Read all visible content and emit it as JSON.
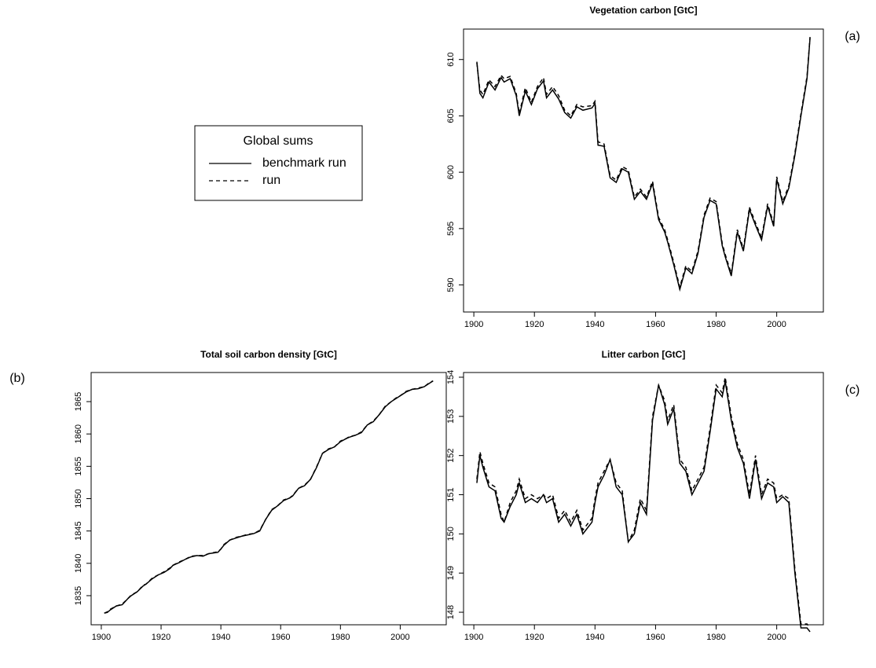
{
  "chart_data": [
    {
      "type": "line",
      "title": "Vegetation carbon [GtC]",
      "panel_label": "(a)",
      "legend_title": "Global sums",
      "x": [
        1901,
        1902,
        1903,
        1905,
        1907,
        1909,
        1910,
        1912,
        1914,
        1915,
        1917,
        1919,
        1921,
        1923,
        1924,
        1926,
        1928,
        1930,
        1932,
        1934,
        1936,
        1939,
        1940,
        1941,
        1943,
        1945,
        1947,
        1949,
        1951,
        1953,
        1955,
        1957,
        1959,
        1961,
        1963,
        1964,
        1966,
        1968,
        1970,
        1972,
        1974,
        1976,
        1978,
        1980,
        1982,
        1983,
        1985,
        1987,
        1989,
        1991,
        1993,
        1995,
        1997,
        1999,
        2000,
        2002,
        2004,
        2006,
        2008,
        2010,
        2011
      ],
      "series": [
        {
          "name": "benchmark run",
          "color": "#000000",
          "linestyle": "solid",
          "values": [
            609.8,
            607.0,
            606.6,
            608.0,
            607.3,
            608.4,
            608.0,
            608.3,
            606.8,
            605.0,
            607.2,
            606.0,
            607.4,
            608.1,
            606.6,
            607.3,
            606.5,
            605.3,
            604.8,
            605.8,
            605.5,
            605.7,
            606.1,
            602.4,
            602.3,
            599.5,
            599.1,
            600.3,
            600.0,
            597.6,
            598.3,
            597.6,
            599.0,
            595.8,
            594.7,
            593.8,
            591.8,
            589.6,
            591.5,
            591.0,
            592.8,
            596.0,
            597.5,
            597.2,
            593.5,
            592.5,
            590.8,
            594.7,
            593.0,
            596.7,
            595.3,
            594.0,
            597.0,
            595.2,
            599.4,
            597.2,
            598.6,
            601.5,
            605.0,
            608.3,
            611.9
          ]
        },
        {
          "name": "run",
          "color": "#000000",
          "linestyle": "dashed",
          "values": [
            609.7,
            607.3,
            606.9,
            608.2,
            607.6,
            608.6,
            608.3,
            608.5,
            607.0,
            605.2,
            607.5,
            606.2,
            607.6,
            608.4,
            606.9,
            607.6,
            606.8,
            605.5,
            605.0,
            606.0,
            605.8,
            605.9,
            606.3,
            602.7,
            602.5,
            599.7,
            599.3,
            600.5,
            600.2,
            597.8,
            598.5,
            597.8,
            599.2,
            596.0,
            594.9,
            594.0,
            592.0,
            589.8,
            591.7,
            591.2,
            593.0,
            596.2,
            597.7,
            597.4,
            593.7,
            592.7,
            591.0,
            594.9,
            593.2,
            596.9,
            595.5,
            594.2,
            597.2,
            595.4,
            599.6,
            597.4,
            598.8,
            601.7,
            605.2,
            608.5,
            612.0
          ]
        }
      ],
      "xlim": [
        1896.6,
        2015.4
      ],
      "xticks": [
        1900,
        1920,
        1940,
        1960,
        1980,
        2000
      ],
      "ylim": [
        587.6,
        612.7
      ],
      "yticks": [
        590,
        595,
        600,
        605,
        610
      ]
    },
    {
      "type": "line",
      "title": "Total soil carbon density [GtC]",
      "panel_label": "(b)",
      "x": [
        1901,
        1902,
        1903,
        1905,
        1907,
        1909,
        1910,
        1912,
        1914,
        1915,
        1917,
        1919,
        1921,
        1923,
        1924,
        1926,
        1928,
        1930,
        1932,
        1934,
        1936,
        1939,
        1940,
        1941,
        1943,
        1945,
        1947,
        1949,
        1951,
        1953,
        1955,
        1957,
        1959,
        1961,
        1963,
        1964,
        1966,
        1968,
        1970,
        1972,
        1974,
        1976,
        1978,
        1980,
        1982,
        1983,
        1985,
        1987,
        1989,
        1991,
        1993,
        1995,
        1997,
        1999,
        2000,
        2002,
        2004,
        2006,
        2008,
        2010,
        2011
      ],
      "series": [
        {
          "color": "#000000",
          "linestyle": "solid",
          "values": [
            1832.3,
            1832.4,
            1832.8,
            1833.4,
            1833.6,
            1834.6,
            1835.0,
            1835.6,
            1836.5,
            1836.8,
            1837.6,
            1838.2,
            1838.6,
            1839.2,
            1839.7,
            1840.1,
            1840.6,
            1841.0,
            1841.2,
            1841.1,
            1841.5,
            1841.7,
            1842.2,
            1842.8,
            1843.6,
            1843.9,
            1844.2,
            1844.4,
            1844.6,
            1845.0,
            1846.8,
            1848.2,
            1848.9,
            1849.7,
            1850.1,
            1850.4,
            1851.6,
            1852.0,
            1853.0,
            1854.8,
            1857.0,
            1857.6,
            1858.0,
            1858.8,
            1859.3,
            1859.5,
            1859.8,
            1860.2,
            1861.4,
            1861.9,
            1863.0,
            1864.2,
            1865.0,
            1865.6,
            1865.9,
            1866.5,
            1866.9,
            1867.0,
            1867.3,
            1867.9,
            1868.2
          ]
        },
        {
          "color": "#000000",
          "linestyle": "dashed",
          "values": [
            1832.3,
            1832.5,
            1832.9,
            1833.4,
            1833.7,
            1834.6,
            1835.1,
            1835.6,
            1836.6,
            1836.8,
            1837.7,
            1838.2,
            1838.7,
            1839.3,
            1839.7,
            1840.2,
            1840.6,
            1841.1,
            1841.2,
            1841.2,
            1841.5,
            1841.8,
            1842.2,
            1842.9,
            1843.6,
            1844.0,
            1844.2,
            1844.5,
            1844.6,
            1845.1,
            1846.8,
            1848.3,
            1848.9,
            1849.8,
            1850.1,
            1850.5,
            1851.6,
            1852.1,
            1853.0,
            1854.9,
            1857.0,
            1857.7,
            1858.0,
            1858.9,
            1859.3,
            1859.6,
            1859.8,
            1860.3,
            1861.4,
            1862.0,
            1863.0,
            1864.3,
            1865.0,
            1865.7,
            1865.9,
            1866.6,
            1866.9,
            1867.1,
            1867.3,
            1868.0,
            1868.2
          ]
        }
      ],
      "xlim": [
        1896.6,
        2015.4
      ],
      "xticks": [
        1900,
        1920,
        1940,
        1960,
        1980,
        2000
      ],
      "ylim": [
        1830.5,
        1869.5
      ],
      "yticks": [
        1835,
        1840,
        1845,
        1850,
        1855,
        1860,
        1865
      ]
    },
    {
      "type": "line",
      "title": "Litter carbon [GtC]",
      "panel_label": "(c)",
      "x": [
        1901,
        1902,
        1903,
        1905,
        1907,
        1909,
        1910,
        1912,
        1914,
        1915,
        1917,
        1919,
        1921,
        1923,
        1924,
        1926,
        1928,
        1930,
        1932,
        1934,
        1936,
        1939,
        1940,
        1941,
        1943,
        1945,
        1947,
        1949,
        1951,
        1953,
        1955,
        1957,
        1959,
        1961,
        1963,
        1964,
        1966,
        1968,
        1970,
        1972,
        1974,
        1976,
        1978,
        1980,
        1982,
        1983,
        1985,
        1987,
        1989,
        1991,
        1993,
        1995,
        1997,
        1999,
        2000,
        2002,
        2004,
        2006,
        2008,
        2010,
        2011
      ],
      "series": [
        {
          "color": "#000000",
          "linestyle": "solid",
          "values": [
            151.3,
            152.0,
            151.7,
            151.2,
            151.1,
            150.4,
            150.3,
            150.7,
            151.0,
            151.3,
            150.8,
            150.9,
            150.8,
            151.0,
            150.8,
            150.9,
            150.3,
            150.5,
            150.2,
            150.5,
            150.0,
            150.3,
            150.8,
            151.2,
            151.5,
            151.9,
            151.2,
            151.0,
            149.8,
            150.0,
            150.8,
            150.5,
            152.9,
            153.8,
            153.3,
            152.8,
            153.2,
            151.8,
            151.6,
            151.0,
            151.3,
            151.6,
            152.6,
            153.7,
            153.5,
            153.9,
            152.9,
            152.2,
            151.8,
            150.9,
            151.9,
            150.9,
            151.3,
            151.2,
            150.8,
            150.95,
            150.8,
            149.0,
            147.6,
            147.6,
            147.5
          ]
        },
        {
          "color": "#000000",
          "linestyle": "dashed",
          "values": [
            151.4,
            152.1,
            151.8,
            151.3,
            151.2,
            150.5,
            150.3,
            150.8,
            151.1,
            151.4,
            150.9,
            151.0,
            150.9,
            151.0,
            150.9,
            151.0,
            150.4,
            150.6,
            150.3,
            150.6,
            150.1,
            150.4,
            150.9,
            151.3,
            151.6,
            151.9,
            151.3,
            151.1,
            149.8,
            150.1,
            150.9,
            150.6,
            153.0,
            153.8,
            153.4,
            152.9,
            153.3,
            151.9,
            151.7,
            151.1,
            151.4,
            151.7,
            152.7,
            153.8,
            153.6,
            154.0,
            153.0,
            152.3,
            151.9,
            151.0,
            152.0,
            151.0,
            151.4,
            151.3,
            150.9,
            151.0,
            150.9,
            149.1,
            147.7,
            147.7,
            147.6
          ]
        }
      ],
      "xlim": [
        1896.6,
        2015.4
      ],
      "xticks": [
        1900,
        1920,
        1940,
        1960,
        1980,
        2000
      ],
      "ylim": [
        147.68,
        154.12
      ],
      "yticks": [
        148,
        149,
        150,
        151,
        152,
        153,
        154
      ]
    }
  ]
}
